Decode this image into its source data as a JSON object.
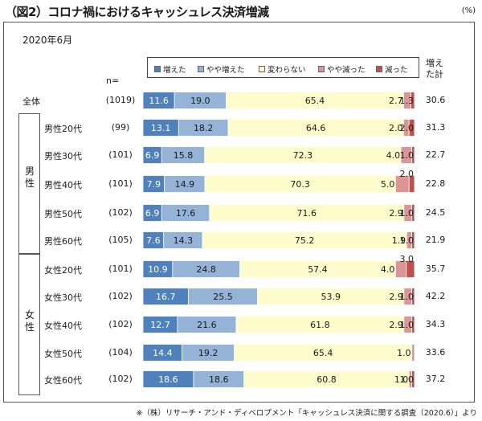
{
  "title": "（図2）コロナ禍におけるキャッシュレス決済増減",
  "unit": "(%)",
  "period": "2020年6月",
  "n_header": "n=",
  "total_header": "増えた計",
  "footer": "※（株）リサーチ・アンド・ディベロプメント「キャッシュレス決済に関する調査（2020.6）」より",
  "colors": {
    "increased": "#4f81bd",
    "somewhat_increased": "#95b3d7",
    "unchanged": "#fffccc",
    "somewhat_decreased": "#d99694",
    "decreased": "#c0504d"
  },
  "chart_data": {
    "type": "bar",
    "orientation": "horizontal",
    "stacked": true,
    "percent": true,
    "legend_position": "top",
    "series": [
      {
        "name": "増えた",
        "color": "#4f81bd",
        "values": [
          11.6,
          13.1,
          6.9,
          7.9,
          6.9,
          7.6,
          10.9,
          16.7,
          12.7,
          14.4,
          18.6
        ]
      },
      {
        "name": "やや増えた",
        "color": "#95b3d7",
        "values": [
          19.0,
          18.2,
          15.8,
          14.9,
          17.6,
          14.3,
          24.8,
          25.5,
          21.6,
          19.2,
          18.6
        ]
      },
      {
        "name": "変わらない",
        "color": "#fffccc",
        "values": [
          65.4,
          64.6,
          72.3,
          70.3,
          71.6,
          75.2,
          57.4,
          53.9,
          61.8,
          65.4,
          60.8
        ]
      },
      {
        "name": "やや減った",
        "color": "#d99694",
        "values": [
          2.7,
          2.0,
          4.0,
          5.0,
          2.9,
          1.9,
          4.0,
          2.9,
          2.9,
          1.0,
          1.0
        ]
      },
      {
        "name": "減った",
        "color": "#c0504d",
        "values": [
          1.3,
          2.0,
          1.0,
          2.0,
          1.0,
          1.0,
          3.0,
          1.0,
          1.0,
          0.0,
          1.0
        ]
      }
    ],
    "rows": [
      {
        "group": "",
        "label": "全体",
        "n": "(1019)",
        "total": "30.6",
        "labels": [
          "11.6",
          "19.0",
          "65.4",
          "2.7",
          "1.3"
        ]
      },
      {
        "group": "男性",
        "label": "男性20代",
        "n": "(99)",
        "total": "31.3",
        "labels": [
          "13.1",
          "18.2",
          "64.6",
          "2.0",
          "2.0"
        ]
      },
      {
        "group": "男性",
        "label": "男性30代",
        "n": "(101)",
        "total": "22.7",
        "labels": [
          "6.9",
          "15.8",
          "72.3",
          "4.0",
          "1.0"
        ]
      },
      {
        "group": "男性",
        "label": "男性40代",
        "n": "(101)",
        "total": "22.8",
        "labels": [
          "7.9",
          "14.9",
          "70.3",
          "5.0",
          "2.0"
        ]
      },
      {
        "group": "男性",
        "label": "男性50代",
        "n": "(102)",
        "total": "24.5",
        "labels": [
          "6.9",
          "17.6",
          "71.6",
          "2.9",
          "1.0"
        ]
      },
      {
        "group": "男性",
        "label": "男性60代",
        "n": "(105)",
        "total": "21.9",
        "labels": [
          "7.6",
          "14.3",
          "75.2",
          "1.9",
          "1.0"
        ]
      },
      {
        "group": "女性",
        "label": "女性20代",
        "n": "(101)",
        "total": "35.7",
        "labels": [
          "10.9",
          "24.8",
          "57.4",
          "4.0",
          "3.0"
        ]
      },
      {
        "group": "女性",
        "label": "女性30代",
        "n": "(102)",
        "total": "42.2",
        "labels": [
          "16.7",
          "25.5",
          "53.9",
          "2.9",
          "1.0"
        ]
      },
      {
        "group": "女性",
        "label": "女性40代",
        "n": "(102)",
        "total": "34.3",
        "labels": [
          "12.7",
          "21.6",
          "61.8",
          "2.9",
          "1.0"
        ]
      },
      {
        "group": "女性",
        "label": "女性50代",
        "n": "(104)",
        "total": "33.6",
        "labels": [
          "14.4",
          "19.2",
          "65.4",
          "1.0",
          ""
        ]
      },
      {
        "group": "女性",
        "label": "女性60代",
        "n": "(102)",
        "total": "37.2",
        "labels": [
          "18.6",
          "18.6",
          "60.8",
          "1.0",
          "1.0"
        ]
      }
    ],
    "groups": [
      {
        "name": "男性",
        "chars": [
          "男",
          "性"
        ]
      },
      {
        "name": "女性",
        "chars": [
          "女",
          "性"
        ]
      }
    ]
  }
}
